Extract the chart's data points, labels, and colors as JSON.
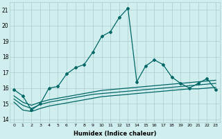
{
  "xlabel": "Humidex (Indice chaleur)",
  "x": [
    0,
    1,
    2,
    3,
    4,
    5,
    6,
    7,
    8,
    9,
    10,
    11,
    12,
    13,
    14,
    15,
    16,
    17,
    18,
    19,
    20,
    21,
    22,
    23
  ],
  "main_line": [
    15.9,
    15.5,
    14.6,
    15.0,
    16.0,
    16.1,
    16.9,
    17.3,
    17.5,
    18.3,
    19.3,
    19.6,
    20.5,
    21.1,
    16.4,
    17.4,
    17.8,
    17.5,
    16.7,
    16.3,
    16.0,
    16.3,
    16.6,
    15.9
  ],
  "flat_line1": [
    15.1,
    14.6,
    14.5,
    14.7,
    14.85,
    14.95,
    15.05,
    15.15,
    15.25,
    15.35,
    15.45,
    15.5,
    15.55,
    15.6,
    15.65,
    15.7,
    15.75,
    15.8,
    15.85,
    15.9,
    15.95,
    15.95,
    16.0,
    16.05
  ],
  "flat_line2": [
    15.3,
    14.9,
    14.7,
    14.95,
    15.1,
    15.2,
    15.3,
    15.4,
    15.5,
    15.6,
    15.65,
    15.7,
    15.75,
    15.8,
    15.85,
    15.9,
    15.95,
    16.0,
    16.05,
    16.1,
    16.15,
    16.2,
    16.25,
    16.3
  ],
  "flat_line3": [
    15.5,
    15.1,
    14.9,
    15.1,
    15.25,
    15.35,
    15.45,
    15.55,
    15.65,
    15.75,
    15.85,
    15.9,
    15.95,
    16.0,
    16.05,
    16.1,
    16.15,
    16.2,
    16.25,
    16.3,
    16.35,
    16.4,
    16.45,
    16.5
  ],
  "line_color": "#006666",
  "bg_color": "#d0eeee",
  "grid_color": "#aacccc",
  "ylim": [
    13.8,
    21.5
  ],
  "xlim": [
    -0.5,
    23.5
  ],
  "yticks": [
    14,
    15,
    16,
    17,
    18,
    19,
    20,
    21
  ],
  "xticks": [
    0,
    1,
    2,
    3,
    4,
    5,
    6,
    7,
    8,
    9,
    10,
    11,
    12,
    13,
    14,
    15,
    16,
    17,
    18,
    19,
    20,
    21,
    22,
    23
  ]
}
